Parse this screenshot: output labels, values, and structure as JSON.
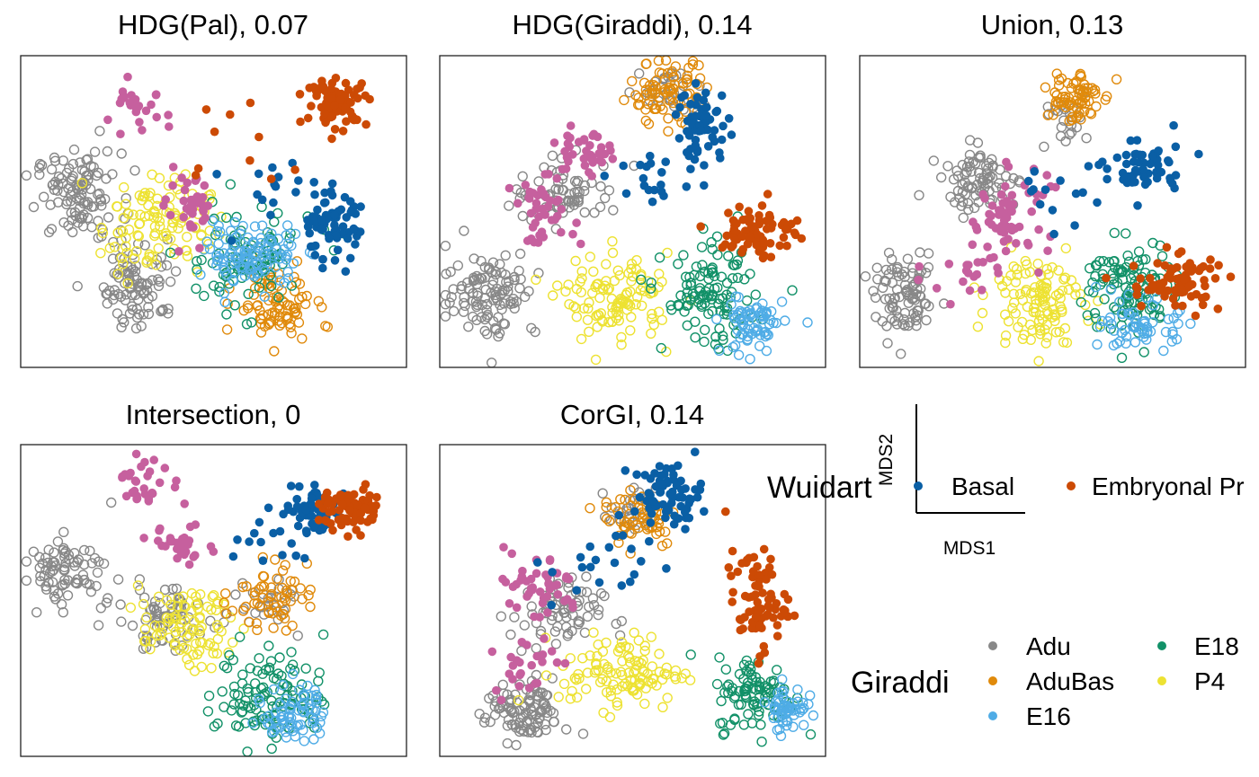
{
  "colors": {
    "Adu": "#888888",
    "AduBas": "#E08A0B",
    "E16": "#4FACE6",
    "E18": "#129168",
    "P4": "#EDE232",
    "Basal": "#0A5FA5",
    "EmbryonalPr": "#CC4A05",
    "Pink": "#C6609E"
  },
  "legend": {
    "wuidart_title": "Wuidart",
    "wuidart_items": [
      {
        "label": "Basal",
        "color_key": "Basal"
      },
      {
        "label": "Embryonal Pr",
        "color_key": "EmbryonalPr"
      }
    ],
    "giraddi_title": "Giraddi",
    "giraddi_items": [
      {
        "label": "Adu",
        "color_key": "Adu"
      },
      {
        "label": "AduBas",
        "color_key": "AduBas"
      },
      {
        "label": "E16",
        "color_key": "E16"
      },
      {
        "label": "E18",
        "color_key": "E18"
      },
      {
        "label": "P4",
        "color_key": "P4"
      }
    ],
    "axis_x": "MDS1",
    "axis_y": "MDS2"
  },
  "chart_data": [
    {
      "type": "scatter",
      "title": "HDG(Pal), 0.07",
      "clusters": [
        {
          "group": "Adu",
          "cx": 0.15,
          "cy": 0.55,
          "sx": 0.055,
          "sy": 0.07,
          "n": 110,
          "filled": false
        },
        {
          "group": "Adu",
          "cx": 0.31,
          "cy": 0.27,
          "sx": 0.05,
          "sy": 0.07,
          "n": 90,
          "filled": false
        },
        {
          "group": "P4",
          "cx": 0.35,
          "cy": 0.46,
          "sx": 0.07,
          "sy": 0.08,
          "n": 110,
          "filled": false
        },
        {
          "group": "Pink",
          "cx": 0.44,
          "cy": 0.5,
          "sx": 0.03,
          "sy": 0.05,
          "n": 35,
          "filled": true
        },
        {
          "group": "Pink",
          "cx": 0.3,
          "cy": 0.82,
          "sx": 0.04,
          "sy": 0.04,
          "n": 25,
          "filled": true
        },
        {
          "group": "E16",
          "cx": 0.6,
          "cy": 0.36,
          "sx": 0.06,
          "sy": 0.05,
          "n": 110,
          "filled": false
        },
        {
          "group": "E18",
          "cx": 0.58,
          "cy": 0.35,
          "sx": 0.09,
          "sy": 0.08,
          "n": 90,
          "filled": false
        },
        {
          "group": "AduBas",
          "cx": 0.66,
          "cy": 0.2,
          "sx": 0.05,
          "sy": 0.06,
          "n": 85,
          "filled": false
        },
        {
          "group": "Basal",
          "cx": 0.8,
          "cy": 0.45,
          "sx": 0.04,
          "sy": 0.055,
          "n": 70,
          "filled": true
        },
        {
          "group": "Basal",
          "cx": 0.66,
          "cy": 0.6,
          "sx": 0.07,
          "sy": 0.08,
          "n": 15,
          "filled": true
        },
        {
          "group": "EmbryonalPr",
          "cx": 0.82,
          "cy": 0.85,
          "sx": 0.04,
          "sy": 0.035,
          "n": 75,
          "filled": true
        },
        {
          "group": "EmbryonalPr",
          "cx": 0.58,
          "cy": 0.72,
          "sx": 0.12,
          "sy": 0.1,
          "n": 10,
          "filled": true
        }
      ]
    },
    {
      "type": "scatter",
      "title": "HDG(Giraddi), 0.14",
      "clusters": [
        {
          "group": "Adu",
          "cx": 0.13,
          "cy": 0.24,
          "sx": 0.06,
          "sy": 0.07,
          "n": 110,
          "filled": false
        },
        {
          "group": "Adu",
          "cx": 0.33,
          "cy": 0.56,
          "sx": 0.07,
          "sy": 0.05,
          "n": 70,
          "filled": false
        },
        {
          "group": "Adu",
          "cx": 0.6,
          "cy": 0.88,
          "sx": 0.04,
          "sy": 0.04,
          "n": 30,
          "filled": false
        },
        {
          "group": "AduBas",
          "cx": 0.59,
          "cy": 0.88,
          "sx": 0.05,
          "sy": 0.05,
          "n": 80,
          "filled": false
        },
        {
          "group": "Pink",
          "cx": 0.37,
          "cy": 0.68,
          "sx": 0.04,
          "sy": 0.04,
          "n": 40,
          "filled": true
        },
        {
          "group": "Pink",
          "cx": 0.27,
          "cy": 0.5,
          "sx": 0.04,
          "sy": 0.05,
          "n": 40,
          "filled": true
        },
        {
          "group": "P4",
          "cx": 0.46,
          "cy": 0.22,
          "sx": 0.07,
          "sy": 0.07,
          "n": 110,
          "filled": false
        },
        {
          "group": "E18",
          "cx": 0.7,
          "cy": 0.22,
          "sx": 0.06,
          "sy": 0.08,
          "n": 110,
          "filled": false
        },
        {
          "group": "E16",
          "cx": 0.81,
          "cy": 0.14,
          "sx": 0.04,
          "sy": 0.05,
          "n": 70,
          "filled": false
        },
        {
          "group": "Basal",
          "cx": 0.68,
          "cy": 0.78,
          "sx": 0.035,
          "sy": 0.06,
          "n": 60,
          "filled": true
        },
        {
          "group": "Basal",
          "cx": 0.55,
          "cy": 0.6,
          "sx": 0.06,
          "sy": 0.05,
          "n": 20,
          "filled": true
        },
        {
          "group": "EmbryonalPr",
          "cx": 0.83,
          "cy": 0.44,
          "sx": 0.05,
          "sy": 0.045,
          "n": 75,
          "filled": true
        }
      ]
    },
    {
      "type": "scatter",
      "title": "Union, 0.13",
      "clusters": [
        {
          "group": "Adu",
          "cx": 0.12,
          "cy": 0.22,
          "sx": 0.04,
          "sy": 0.06,
          "n": 90,
          "filled": false
        },
        {
          "group": "Adu",
          "cx": 0.31,
          "cy": 0.6,
          "sx": 0.05,
          "sy": 0.05,
          "n": 80,
          "filled": false
        },
        {
          "group": "Adu",
          "cx": 0.53,
          "cy": 0.8,
          "sx": 0.03,
          "sy": 0.05,
          "n": 25,
          "filled": false
        },
        {
          "group": "AduBas",
          "cx": 0.55,
          "cy": 0.87,
          "sx": 0.035,
          "sy": 0.045,
          "n": 70,
          "filled": false
        },
        {
          "group": "Pink",
          "cx": 0.39,
          "cy": 0.5,
          "sx": 0.05,
          "sy": 0.07,
          "n": 60,
          "filled": true
        },
        {
          "group": "Pink",
          "cx": 0.27,
          "cy": 0.3,
          "sx": 0.05,
          "sy": 0.04,
          "n": 20,
          "filled": true
        },
        {
          "group": "P4",
          "cx": 0.46,
          "cy": 0.22,
          "sx": 0.06,
          "sy": 0.07,
          "n": 110,
          "filled": false
        },
        {
          "group": "E18",
          "cx": 0.7,
          "cy": 0.25,
          "sx": 0.06,
          "sy": 0.08,
          "n": 110,
          "filled": false
        },
        {
          "group": "E16",
          "cx": 0.73,
          "cy": 0.13,
          "sx": 0.05,
          "sy": 0.04,
          "n": 60,
          "filled": false
        },
        {
          "group": "Basal",
          "cx": 0.74,
          "cy": 0.64,
          "sx": 0.05,
          "sy": 0.05,
          "n": 55,
          "filled": true
        },
        {
          "group": "Basal",
          "cx": 0.5,
          "cy": 0.55,
          "sx": 0.07,
          "sy": 0.06,
          "n": 15,
          "filled": true
        },
        {
          "group": "EmbryonalPr",
          "cx": 0.82,
          "cy": 0.27,
          "sx": 0.06,
          "sy": 0.045,
          "n": 75,
          "filled": true
        }
      ]
    },
    {
      "type": "scatter",
      "title": "Intersection, 0",
      "clusters": [
        {
          "group": "Adu",
          "cx": 0.12,
          "cy": 0.6,
          "sx": 0.06,
          "sy": 0.05,
          "n": 80,
          "filled": false
        },
        {
          "group": "Adu",
          "cx": 0.37,
          "cy": 0.44,
          "sx": 0.06,
          "sy": 0.05,
          "n": 70,
          "filled": false
        },
        {
          "group": "Adu",
          "cx": 0.64,
          "cy": 0.5,
          "sx": 0.05,
          "sy": 0.05,
          "n": 25,
          "filled": false
        },
        {
          "group": "AduBas",
          "cx": 0.64,
          "cy": 0.51,
          "sx": 0.05,
          "sy": 0.05,
          "n": 60,
          "filled": false
        },
        {
          "group": "P4",
          "cx": 0.43,
          "cy": 0.41,
          "sx": 0.06,
          "sy": 0.06,
          "n": 90,
          "filled": false
        },
        {
          "group": "E18",
          "cx": 0.65,
          "cy": 0.2,
          "sx": 0.07,
          "sy": 0.08,
          "n": 110,
          "filled": false
        },
        {
          "group": "E16",
          "cx": 0.71,
          "cy": 0.14,
          "sx": 0.04,
          "sy": 0.05,
          "n": 70,
          "filled": false
        },
        {
          "group": "Pink",
          "cx": 0.42,
          "cy": 0.68,
          "sx": 0.04,
          "sy": 0.03,
          "n": 30,
          "filled": true
        },
        {
          "group": "Pink",
          "cx": 0.33,
          "cy": 0.88,
          "sx": 0.04,
          "sy": 0.04,
          "n": 30,
          "filled": true
        },
        {
          "group": "Basal",
          "cx": 0.76,
          "cy": 0.79,
          "sx": 0.04,
          "sy": 0.04,
          "n": 55,
          "filled": true
        },
        {
          "group": "Basal",
          "cx": 0.62,
          "cy": 0.7,
          "sx": 0.06,
          "sy": 0.05,
          "n": 15,
          "filled": true
        },
        {
          "group": "EmbryonalPr",
          "cx": 0.86,
          "cy": 0.79,
          "sx": 0.04,
          "sy": 0.035,
          "n": 75,
          "filled": true
        }
      ]
    },
    {
      "type": "scatter",
      "title": "CorGI, 0.14",
      "clusters": [
        {
          "group": "Adu",
          "cx": 0.22,
          "cy": 0.14,
          "sx": 0.05,
          "sy": 0.05,
          "n": 100,
          "filled": false
        },
        {
          "group": "Adu",
          "cx": 0.3,
          "cy": 0.45,
          "sx": 0.06,
          "sy": 0.06,
          "n": 70,
          "filled": false
        },
        {
          "group": "Adu",
          "cx": 0.5,
          "cy": 0.78,
          "sx": 0.03,
          "sy": 0.04,
          "n": 25,
          "filled": false
        },
        {
          "group": "AduBas",
          "cx": 0.52,
          "cy": 0.77,
          "sx": 0.05,
          "sy": 0.05,
          "n": 60,
          "filled": false
        },
        {
          "group": "Pink",
          "cx": 0.25,
          "cy": 0.54,
          "sx": 0.06,
          "sy": 0.06,
          "n": 45,
          "filled": true
        },
        {
          "group": "Pink",
          "cx": 0.22,
          "cy": 0.3,
          "sx": 0.04,
          "sy": 0.05,
          "n": 25,
          "filled": true
        },
        {
          "group": "P4",
          "cx": 0.47,
          "cy": 0.27,
          "sx": 0.08,
          "sy": 0.06,
          "n": 110,
          "filled": false
        },
        {
          "group": "E18",
          "cx": 0.82,
          "cy": 0.2,
          "sx": 0.05,
          "sy": 0.06,
          "n": 90,
          "filled": false
        },
        {
          "group": "E16",
          "cx": 0.9,
          "cy": 0.16,
          "sx": 0.025,
          "sy": 0.035,
          "n": 55,
          "filled": false
        },
        {
          "group": "Basal",
          "cx": 0.59,
          "cy": 0.84,
          "sx": 0.045,
          "sy": 0.05,
          "n": 70,
          "filled": true
        },
        {
          "group": "Basal",
          "cx": 0.45,
          "cy": 0.6,
          "sx": 0.08,
          "sy": 0.07,
          "n": 20,
          "filled": true
        },
        {
          "group": "EmbryonalPr",
          "cx": 0.82,
          "cy": 0.5,
          "sx": 0.04,
          "sy": 0.08,
          "n": 75,
          "filled": true
        }
      ]
    }
  ]
}
